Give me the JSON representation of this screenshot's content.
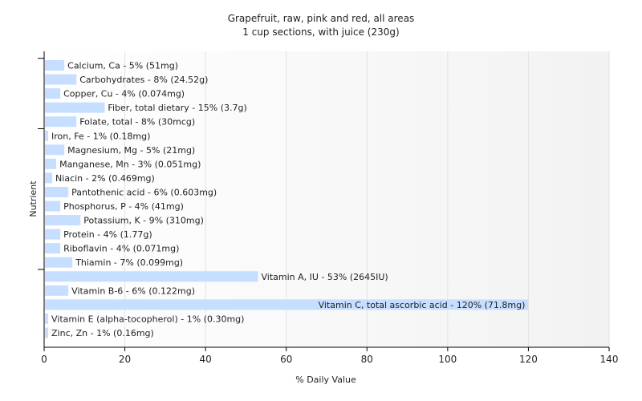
{
  "chart_data": {
    "type": "bar",
    "orientation": "horizontal",
    "title": "Grapefruit, raw, pink and red, all areas",
    "subtitle": "1 cup sections, with juice (230g)",
    "xlabel": "% Daily Value",
    "ylabel": "Nutrient",
    "xlim": [
      0,
      140
    ],
    "xticks": [
      0,
      20,
      40,
      60,
      80,
      100,
      120,
      140
    ],
    "grid": true,
    "categories": [
      "Calcium, Ca - 5% (51mg)",
      "Carbohydrates - 8% (24.52g)",
      "Copper, Cu - 4% (0.074mg)",
      "Fiber, total dietary - 15% (3.7g)",
      "Folate, total - 8% (30mcg)",
      "Iron, Fe - 1% (0.18mg)",
      "Magnesium, Mg - 5% (21mg)",
      "Manganese, Mn - 3% (0.051mg)",
      "Niacin - 2% (0.469mg)",
      "Pantothenic acid - 6% (0.603mg)",
      "Phosphorus, P - 4% (41mg)",
      "Potassium, K - 9% (310mg)",
      "Protein - 4% (1.77g)",
      "Riboflavin - 4% (0.071mg)",
      "Thiamin - 7% (0.099mg)",
      "Vitamin A, IU - 53% (2645IU)",
      "Vitamin B-6 - 6% (0.122mg)",
      "Vitamin C, total ascorbic acid - 120% (71.8mg)",
      "Vitamin E (alpha-tocopherol) - 1% (0.30mg)",
      "Zinc, Zn - 1% (0.16mg)"
    ],
    "values": [
      5,
      8,
      4,
      15,
      8,
      1,
      5,
      3,
      2,
      6,
      4,
      9,
      4,
      4,
      7,
      53,
      6,
      120,
      1,
      1
    ],
    "bar_color": "#c6deff",
    "grid_color": "#e2e2e2",
    "axis_color": "#000000"
  }
}
